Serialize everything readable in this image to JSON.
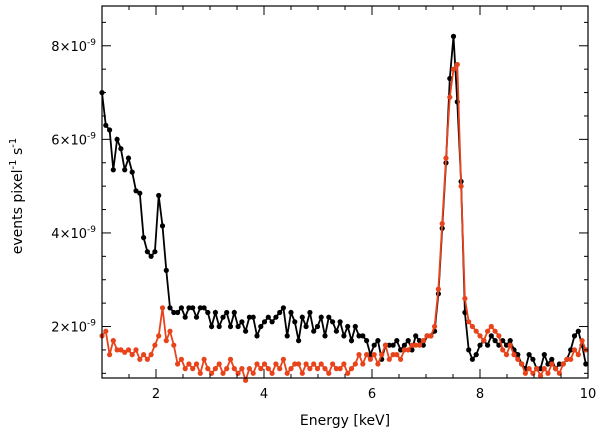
{
  "chart_data": {
    "type": "line",
    "title": "",
    "xlabel": "Energy [keV]",
    "ylabel": "events pixel",
    "ylabel_sup1": "-1",
    "ylabel_mid": " s",
    "ylabel_sup2": "-1",
    "xlim": [
      1,
      10
    ],
    "ylim": [
      9e-10,
      8.85e-09
    ],
    "grid": false,
    "legend": "none",
    "x_ticks": [
      {
        "value": 2,
        "label": "2"
      },
      {
        "value": 4,
        "label": "4"
      },
      {
        "value": 6,
        "label": "6"
      },
      {
        "value": 8,
        "label": "8"
      },
      {
        "value": 10,
        "label": "10"
      }
    ],
    "y_ticks": [
      {
        "value": 2e-09,
        "mant": "2",
        "exp": "-9"
      },
      {
        "value": 4e-09,
        "mant": "4",
        "exp": "-9"
      },
      {
        "value": 6e-09,
        "mant": "6",
        "exp": "-9"
      },
      {
        "value": 8e-09,
        "mant": "8",
        "exp": "-9"
      }
    ],
    "series": [
      {
        "color": "#000000",
        "x": [
          1.0,
          1.07,
          1.14,
          1.21,
          1.28,
          1.35,
          1.42,
          1.49,
          1.56,
          1.63,
          1.7,
          1.77,
          1.84,
          1.91,
          1.98,
          2.05,
          2.12,
          2.19,
          2.26,
          2.33,
          2.4,
          2.47,
          2.54,
          2.61,
          2.68,
          2.75,
          2.82,
          2.89,
          2.96,
          3.03,
          3.1,
          3.17,
          3.24,
          3.31,
          3.38,
          3.45,
          3.52,
          3.59,
          3.66,
          3.73,
          3.8,
          3.87,
          3.94,
          4.01,
          4.08,
          4.15,
          4.22,
          4.29,
          4.36,
          4.43,
          4.5,
          4.57,
          4.64,
          4.71,
          4.78,
          4.85,
          4.92,
          4.99,
          5.06,
          5.13,
          5.2,
          5.27,
          5.34,
          5.41,
          5.48,
          5.55,
          5.62,
          5.69,
          5.76,
          5.83,
          5.9,
          5.97,
          6.04,
          6.11,
          6.18,
          6.25,
          6.32,
          6.39,
          6.46,
          6.53,
          6.6,
          6.67,
          6.74,
          6.81,
          6.88,
          6.95,
          7.02,
          7.09,
          7.16,
          7.23,
          7.3,
          7.37,
          7.44,
          7.51,
          7.58,
          7.65,
          7.72,
          7.79,
          7.86,
          7.93,
          8.0,
          8.07,
          8.14,
          8.21,
          8.28,
          8.35,
          8.42,
          8.49,
          8.56,
          8.63,
          8.7,
          8.77,
          8.84,
          8.91,
          8.98,
          9.05,
          9.12,
          9.19,
          9.26,
          9.33,
          9.4,
          9.47,
          9.54,
          9.61,
          9.68,
          9.75,
          9.82,
          9.89,
          9.96
        ],
        "y": [
          7e-09,
          6.3e-09,
          6.2e-09,
          5.35e-09,
          6e-09,
          5.8e-09,
          5.35e-09,
          5.6e-09,
          5.3e-09,
          4.9e-09,
          4.85e-09,
          3.9e-09,
          3.6e-09,
          3.5e-09,
          3.6e-09,
          4.8e-09,
          4.15e-09,
          3.2e-09,
          2.4e-09,
          2.3e-09,
          2.3e-09,
          2.4e-09,
          2.2e-09,
          2.4e-09,
          2.4e-09,
          2.2e-09,
          2.4e-09,
          2.4e-09,
          2.3e-09,
          2e-09,
          2.3e-09,
          2e-09,
          2.2e-09,
          2.3e-09,
          2e-09,
          2.3e-09,
          2e-09,
          2.1e-09,
          1.9e-09,
          2.2e-09,
          2.2e-09,
          1.8e-09,
          2e-09,
          2.1e-09,
          2.2e-09,
          2.1e-09,
          2.2e-09,
          2.3e-09,
          2.4e-09,
          1.8e-09,
          2.3e-09,
          2.1e-09,
          1.7e-09,
          2.2e-09,
          2e-09,
          2.3e-09,
          1.9e-09,
          2e-09,
          2.2e-09,
          1.8e-09,
          2.2e-09,
          2.1e-09,
          1.9e-09,
          2.1e-09,
          1.8e-09,
          2e-09,
          1.7e-09,
          2e-09,
          1.8e-09,
          1.8e-09,
          1.7e-09,
          1.4e-09,
          1.6e-09,
          1.7e-09,
          1.3e-09,
          1.6e-09,
          1.6e-09,
          1.6e-09,
          1.7e-09,
          1.5e-09,
          1.6e-09,
          1.7e-09,
          1.5e-09,
          1.8e-09,
          1.7e-09,
          1.6e-09,
          1.8e-09,
          1.8e-09,
          1.9e-09,
          2.7e-09,
          4.1e-09,
          5.5e-09,
          7.3e-09,
          8.2e-09,
          6.8e-09,
          5.1e-09,
          2.3e-09,
          1.5e-09,
          1.3e-09,
          1.4e-09,
          1.6e-09,
          1.7e-09,
          1.6e-09,
          1.8e-09,
          1.7e-09,
          1.6e-09,
          1.7e-09,
          1.6e-09,
          1.7e-09,
          1.5e-09,
          1.4e-09,
          1.2e-09,
          1.1e-09,
          1.4e-09,
          1.3e-09,
          1.1e-09,
          1.1e-09,
          1.4e-09,
          1.2e-09,
          1.3e-09,
          1.1e-09,
          1.2e-09,
          1.2e-09,
          1.3e-09,
          1.5e-09,
          1.8e-09,
          1.9e-09,
          1.6e-09,
          1.2e-09
        ]
      },
      {
        "color": "#e8431a",
        "x": [
          1.0,
          1.07,
          1.14,
          1.21,
          1.28,
          1.35,
          1.42,
          1.49,
          1.56,
          1.63,
          1.7,
          1.77,
          1.84,
          1.91,
          1.98,
          2.05,
          2.12,
          2.19,
          2.26,
          2.33,
          2.4,
          2.47,
          2.54,
          2.61,
          2.68,
          2.75,
          2.82,
          2.89,
          2.96,
          3.03,
          3.1,
          3.17,
          3.24,
          3.31,
          3.38,
          3.45,
          3.52,
          3.59,
          3.66,
          3.73,
          3.8,
          3.87,
          3.94,
          4.01,
          4.08,
          4.15,
          4.22,
          4.29,
          4.36,
          4.43,
          4.5,
          4.57,
          4.64,
          4.71,
          4.78,
          4.85,
          4.92,
          4.99,
          5.06,
          5.13,
          5.2,
          5.27,
          5.34,
          5.41,
          5.48,
          5.55,
          5.62,
          5.69,
          5.76,
          5.83,
          5.9,
          5.97,
          6.04,
          6.11,
          6.18,
          6.25,
          6.32,
          6.39,
          6.46,
          6.53,
          6.6,
          6.67,
          6.74,
          6.81,
          6.88,
          6.95,
          7.02,
          7.09,
          7.16,
          7.23,
          7.3,
          7.37,
          7.44,
          7.51,
          7.58,
          7.65,
          7.72,
          7.79,
          7.86,
          7.93,
          8.0,
          8.07,
          8.14,
          8.21,
          8.28,
          8.35,
          8.42,
          8.49,
          8.56,
          8.63,
          8.7,
          8.77,
          8.84,
          8.91,
          8.98,
          9.05,
          9.12,
          9.19,
          9.26,
          9.33,
          9.4,
          9.47,
          9.54,
          9.61,
          9.68,
          9.75,
          9.82,
          9.89,
          9.96
        ],
        "y": [
          1.8e-09,
          1.9e-09,
          1.4e-09,
          1.7e-09,
          1.5e-09,
          1.5e-09,
          1.45e-09,
          1.5e-09,
          1.4e-09,
          1.5e-09,
          1.3e-09,
          1.4e-09,
          1.3e-09,
          1.4e-09,
          1.6e-09,
          1.8e-09,
          2.4e-09,
          1.7e-09,
          1.9e-09,
          1.6e-09,
          1.2e-09,
          1.3e-09,
          1.1e-09,
          1.2e-09,
          1.1e-09,
          1.2e-09,
          1e-09,
          1.3e-09,
          1.1e-09,
          1e-09,
          1.1e-09,
          1.2e-09,
          1e-09,
          1.1e-09,
          1.3e-09,
          1.1e-09,
          1e-09,
          1.1e-09,
          8.5e-10,
          1.1e-09,
          1e-09,
          1.2e-09,
          1.1e-09,
          1.2e-09,
          1.1e-09,
          1e-09,
          1.2e-09,
          1.1e-09,
          1.3e-09,
          1e-09,
          1.1e-09,
          1.2e-09,
          1.2e-09,
          1e-09,
          1.2e-09,
          1.1e-09,
          1.2e-09,
          1.1e-09,
          1.2e-09,
          1.1e-09,
          1e-09,
          1.2e-09,
          1.1e-09,
          1.1e-09,
          1.2e-09,
          1e-09,
          1.1e-09,
          1.2e-09,
          1.4e-09,
          1.2e-09,
          1.4e-09,
          1.3e-09,
          1.4e-09,
          1.2e-09,
          1.4e-09,
          1.6e-09,
          1.3e-09,
          1.4e-09,
          1.4e-09,
          1.3e-09,
          1.5e-09,
          1.5e-09,
          1.6e-09,
          1.6e-09,
          1.6e-09,
          1.7e-09,
          1.8e-09,
          1.8e-09,
          2e-09,
          2.8e-09,
          4.2e-09,
          5.6e-09,
          6.9e-09,
          7.5e-09,
          7.6e-09,
          5e-09,
          2.6e-09,
          2.1e-09,
          2e-09,
          1.9e-09,
          1.8e-09,
          1.7e-09,
          1.9e-09,
          2e-09,
          1.9e-09,
          1.8e-09,
          1.5e-09,
          1.4e-09,
          1.6e-09,
          1.4e-09,
          1.3e-09,
          1.2e-09,
          1e-09,
          1.1e-09,
          1e-09,
          1.1e-09,
          9.5e-10,
          1.1e-09,
          1e-09,
          1.2e-09,
          1.1e-09,
          1e-09,
          1.2e-09,
          1.3e-09,
          1.3e-09,
          1.5e-09,
          1.4e-09,
          1.7e-09,
          1.5e-09
        ]
      }
    ]
  }
}
